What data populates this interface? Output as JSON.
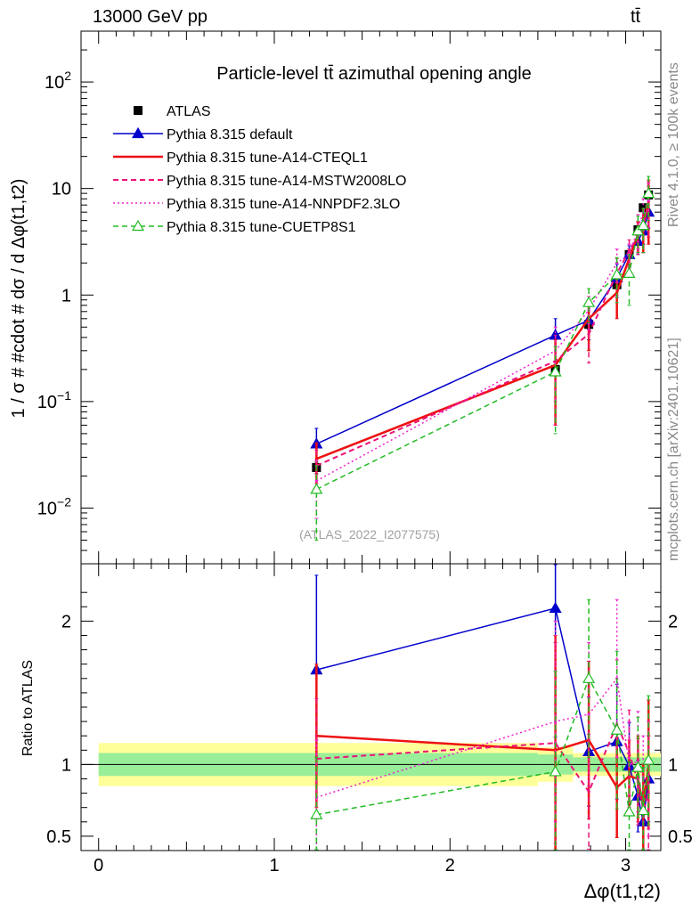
{
  "header": {
    "left": "13000 GeV pp",
    "right": "tt̄"
  },
  "side_labels": {
    "rivet": "Rivet 4.1.0, ≥ 100k events",
    "site": "mcplots.cern.ch [arXiv:2401.10621]"
  },
  "chart_data": [
    {
      "type": "line",
      "panel": "main",
      "title": "Particle-level tt̄ azimuthal opening angle",
      "xlabel": "Δφ(t1,t2)",
      "ylabel": "1 / σ # #cdot # dσ / d Δφ(t1,t2)",
      "yscale": "log",
      "xlim": [
        -0.1,
        3.2
      ],
      "ylim": [
        0.003,
        300
      ],
      "yticks": [
        {
          "value": 0.01,
          "base": "10",
          "exp": "−2"
        },
        {
          "value": 0.1,
          "base": "10",
          "exp": "−1"
        },
        {
          "value": 1,
          "base": "1",
          "exp": ""
        },
        {
          "value": 10,
          "base": "10",
          "exp": ""
        },
        {
          "value": 100,
          "base": "10",
          "exp": "2"
        }
      ],
      "watermark": "(ATLAS_2022_I2077575)",
      "x": [
        1.24,
        2.6,
        2.79,
        2.95,
        3.02,
        3.07,
        3.1,
        3.13
      ],
      "series": [
        {
          "name": "ATLAS",
          "style": "data",
          "color": "#000000",
          "values": [
            0.024,
            0.2,
            0.53,
            1.25,
            2.4,
            4.1,
            6.6,
            8.7
          ],
          "errors": [
            0.003,
            0.02,
            0.05,
            0.1,
            0.2,
            0.35,
            0.5,
            0.6
          ]
        },
        {
          "name": "Pythia 8.315 default",
          "style": "solid-triangle",
          "color": "#0000cc",
          "values": [
            0.04,
            0.42,
            0.58,
            1.45,
            2.4,
            3.2,
            4.0,
            6.0
          ],
          "errors": [
            0.016,
            0.18,
            0.2,
            0.5,
            0.5,
            0.8,
            1.0,
            1.8
          ]
        },
        {
          "name": "Pythia 8.315 tune-A14-CTEQL1",
          "style": "solid-thick",
          "color": "#ee1111",
          "values": [
            0.029,
            0.22,
            0.6,
            1.05,
            2.2,
            3.7,
            4.5,
            7.5
          ],
          "errors": [
            0.012,
            0.16,
            0.3,
            0.45,
            0.5,
            1.2,
            2.0,
            4.5
          ]
        },
        {
          "name": "Pythia 8.315 tune-A14-MSTW2008LO",
          "style": "dashed",
          "color": "#ee1177",
          "values": [
            0.025,
            0.24,
            0.43,
            1.6,
            2.6,
            3.6,
            4.5,
            7.0
          ],
          "errors": [
            0.01,
            0.18,
            0.2,
            0.6,
            0.7,
            1.2,
            2.0,
            3.5
          ]
        },
        {
          "name": "Pythia 8.315 tune-A14-NNPDF2.3LO",
          "style": "dotted",
          "color": "#ee22cc",
          "values": [
            0.018,
            0.3,
            0.72,
            2.0,
            2.4,
            4.2,
            6.0,
            7.8
          ],
          "errors": [
            0.01,
            0.2,
            0.25,
            0.7,
            0.6,
            1.5,
            2.0,
            3.5
          ]
        },
        {
          "name": "Pythia 8.315 tune-CUETP8S1",
          "style": "dashed-triangle",
          "color": "#22bb22",
          "values": [
            0.015,
            0.19,
            0.85,
            1.55,
            1.6,
            4.0,
            4.5,
            9.0
          ],
          "errors": [
            0.01,
            0.14,
            0.3,
            0.7,
            0.8,
            1.5,
            2.0,
            4.0
          ]
        }
      ]
    },
    {
      "type": "line",
      "panel": "ratio",
      "ylabel": "Ratio to ATLAS",
      "xlabel": "Δφ(t1,t2)",
      "xlim": [
        -0.1,
        3.2
      ],
      "ylim": [
        0.4,
        2.4
      ],
      "xticks": [
        "0",
        "1",
        "2",
        "3"
      ],
      "yticks": [
        "0.5",
        "1",
        "2"
      ],
      "band_inner": [
        {
          "x0": 0,
          "x1": 2.5,
          "lo": 0.92,
          "hi": 1.08
        },
        {
          "x0": 2.5,
          "x1": 2.7,
          "lo": 0.93,
          "hi": 1.07
        },
        {
          "x0": 2.7,
          "x1": 3.2,
          "lo": 0.95,
          "hi": 1.05
        }
      ],
      "band_outer": [
        {
          "x0": 0,
          "x1": 2.5,
          "lo": 0.85,
          "hi": 1.15
        },
        {
          "x0": 2.5,
          "x1": 2.7,
          "lo": 0.88,
          "hi": 1.12
        },
        {
          "x0": 2.7,
          "x1": 3.2,
          "lo": 0.92,
          "hi": 1.08
        }
      ],
      "x": [
        1.24,
        2.6,
        2.79,
        2.95,
        3.02,
        3.07,
        3.1,
        3.13
      ],
      "series": [
        {
          "name": "Pythia 8.315 default",
          "style": "solid-triangle",
          "color": "#0000cc",
          "values": [
            1.66,
            2.09,
            1.09,
            1.16,
            0.99,
            0.78,
            0.6,
            0.9
          ],
          "errors": [
            0.66,
            0.9,
            0.38,
            0.4,
            0.3,
            0.25,
            0.2,
            0.3
          ]
        },
        {
          "name": "Pythia 8.315 tune-A14-CTEQL1",
          "style": "solid-thick",
          "color": "#ee1111",
          "values": [
            1.2,
            1.1,
            1.17,
            0.84,
            0.92,
            0.9,
            0.7,
            1.0
          ],
          "errors": [
            0.5,
            0.8,
            0.55,
            0.35,
            0.25,
            0.3,
            0.3,
            0.45
          ]
        },
        {
          "name": "Pythia 8.315 tune-A14-MSTW2008LO",
          "style": "dashed",
          "color": "#ee1177",
          "values": [
            1.04,
            1.15,
            0.81,
            1.28,
            1.08,
            0.88,
            0.68,
            0.8
          ],
          "errors": [
            0.42,
            0.7,
            0.4,
            0.45,
            0.3,
            0.3,
            0.3,
            0.4
          ]
        },
        {
          "name": "Pythia 8.315 tune-A14-NNPDF2.3LO",
          "style": "dotted",
          "color": "#ee22cc",
          "values": [
            0.77,
            1.3,
            1.35,
            1.6,
            1.0,
            1.02,
            0.9,
            0.9
          ],
          "errors": [
            0.4,
            0.7,
            0.5,
            0.55,
            0.3,
            0.35,
            0.3,
            0.4
          ]
        },
        {
          "name": "Pythia 8.315 tune-CUETP8S1",
          "style": "dashed-triangle",
          "color": "#22bb22",
          "values": [
            0.65,
            0.95,
            1.6,
            1.24,
            0.67,
            0.98,
            0.68,
            1.03
          ],
          "errors": [
            0.4,
            0.7,
            0.55,
            0.55,
            0.35,
            0.35,
            0.3,
            0.45
          ]
        }
      ]
    }
  ]
}
